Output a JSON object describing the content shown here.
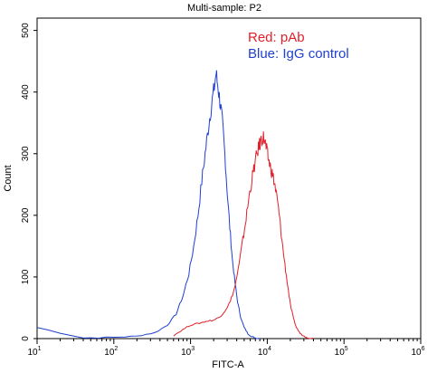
{
  "chart_data": {
    "type": "line",
    "title": "Multi-sample: P2",
    "xlabel": "FITC-A",
    "ylabel": "Count",
    "x_scale": "log",
    "xlim": [
      10,
      1000000
    ],
    "ylim": [
      0,
      520
    ],
    "y_ticks": [
      0,
      100,
      200,
      300,
      400,
      500
    ],
    "x_ticks": [
      {
        "value": 10,
        "base": "10",
        "exp": "1"
      },
      {
        "value": 100,
        "base": "10",
        "exp": "2"
      },
      {
        "value": 1000,
        "base": "10",
        "exp": "3"
      },
      {
        "value": 10000,
        "base": "10",
        "exp": "4"
      },
      {
        "value": 100000,
        "base": "10",
        "exp": "5"
      },
      {
        "value": 1000000,
        "base": "10",
        "exp": "6"
      }
    ],
    "annotations": [
      {
        "text": "Red: pAb",
        "color": "#e0202a"
      },
      {
        "text": "Blue: IgG control",
        "color": "#1f3fcf"
      }
    ],
    "series": [
      {
        "color": "#1f3fcf",
        "x": [
          10,
          40,
          100,
          200,
          350,
          500,
          650,
          800,
          950,
          1100,
          1250,
          1400,
          1550,
          1700,
          1850,
          2000,
          2150,
          2300,
          2450,
          2600,
          2800,
          3000,
          3250,
          3500,
          3800,
          4100,
          4500,
          5000,
          5600,
          6300,
          7000,
          8000
        ],
        "y": [
          18,
          1,
          2,
          4,
          10,
          22,
          40,
          70,
          105,
          150,
          200,
          255,
          300,
          340,
          375,
          400,
          430,
          405,
          380,
          350,
          300,
          240,
          180,
          130,
          90,
          60,
          35,
          18,
          8,
          3,
          1,
          0
        ]
      },
      {
        "color": "#e0202a",
        "x": [
          600,
          800,
          1000,
          1300,
          1600,
          2000,
          2400,
          2800,
          3300,
          3800,
          4300,
          4800,
          5300,
          5800,
          6300,
          6800,
          7300,
          7800,
          8300,
          8800,
          9300,
          9800,
          10400,
          11000,
          11800,
          12600,
          13500,
          14500,
          15500,
          17000,
          18500,
          20000,
          22000,
          24000,
          27000,
          30000,
          35000,
          40000
        ],
        "y": [
          5,
          15,
          22,
          25,
          28,
          30,
          35,
          45,
          60,
          85,
          120,
          160,
          195,
          230,
          258,
          280,
          298,
          312,
          322,
          328,
          320,
          305,
          290,
          278,
          265,
          248,
          225,
          195,
          160,
          120,
          85,
          55,
          32,
          18,
          8,
          4,
          1,
          0
        ]
      }
    ]
  }
}
